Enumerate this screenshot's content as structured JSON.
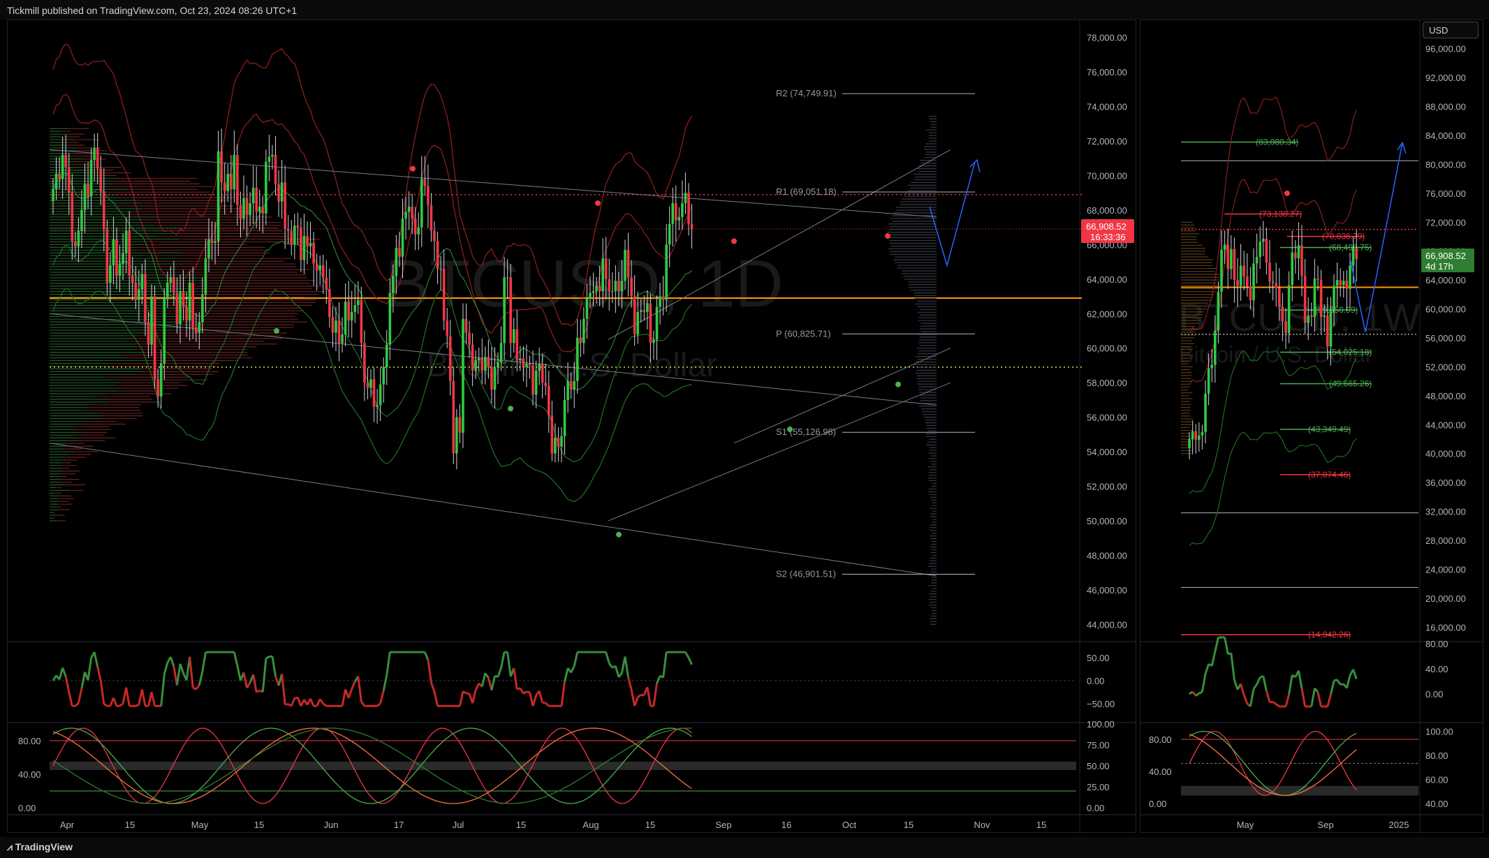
{
  "header": {
    "published": "Tickmill published on TradingView.com, Oct 23, 2024 08:26 UTC+1"
  },
  "footer": {
    "logo_text": "TradingView",
    "logo_icon": "tradingview-logo-icon"
  },
  "symbol_watermark": {
    "left_line1": "BTCUSD, 1D",
    "left_line2": "Bitcoin / U.S. Dollar",
    "right_line1": "BTCUSD, 1W",
    "right_line2": "Bitcoin / U.S. Dollar"
  },
  "left_chart": {
    "price_axis": [
      "78,000.00",
      "76,000.00",
      "74,000.00",
      "72,000.00",
      "70,000.00",
      "68,000.00",
      "66,000.00",
      "64,000.00",
      "62,000.00",
      "60,000.00",
      "58,000.00",
      "56,000.00",
      "54,000.00",
      "52,000.00",
      "50,000.00",
      "48,000.00",
      "46,000.00",
      "44,000.00"
    ],
    "current_price": "66,908.52",
    "countdown": "16:33:36",
    "pivots": [
      {
        "label": "R2 (74,749.91)",
        "value": 74749.91
      },
      {
        "label": "R1 (69,051.18)",
        "value": 69051.18
      },
      {
        "label": "P (60,825.71)",
        "value": 60825.71
      },
      {
        "label": "S1 (55,126.98)",
        "value": 55126.98
      },
      {
        "label": "S2 (46,901.51)",
        "value": 46901.51
      }
    ],
    "time_axis": [
      "Apr",
      "15",
      "May",
      "15",
      "Jun",
      "17",
      "Jul",
      "15",
      "Aug",
      "15",
      "Sep",
      "16",
      "Oct",
      "15",
      "Nov",
      "15"
    ],
    "osc1_axis": [
      "50.00",
      "0.00",
      "−50.00"
    ],
    "osc2_left_axis": [
      "80.00",
      "40.00",
      "0.00"
    ],
    "osc2_right_axis": [
      "100.00",
      "75.00",
      "50.00",
      "25.00",
      "0.00"
    ],
    "chart_data": {
      "type": "candlestick",
      "title": "BTCUSD, 1D",
      "ylim": [
        43000,
        79000
      ],
      "x_range": [
        "2024-03-26",
        "2024-11-30"
      ],
      "close_prices": [
        69200,
        70100,
        69800,
        71200,
        70500,
        69000,
        66200,
        65900,
        66800,
        68000,
        69500,
        68800,
        70900,
        71600,
        70400,
        69100,
        66900,
        63800,
        64800,
        66300,
        64200,
        64900,
        65500,
        66800,
        64200,
        63800,
        62800,
        63400,
        64300,
        61500,
        60200,
        63000,
        58200,
        57200,
        59100,
        62900,
        63800,
        64100,
        63200,
        61400,
        63300,
        62400,
        61600,
        63800,
        61200,
        60900,
        61500,
        63100,
        65200,
        66300,
        66100,
        66200,
        71400,
        69600,
        69100,
        70100,
        69200,
        71200,
        68300,
        67500,
        68700,
        67700,
        68400,
        69300,
        67900,
        68200,
        67800,
        70800,
        71100,
        71200,
        69500,
        68500,
        69600,
        66900,
        66800,
        66000,
        67100,
        67000,
        65100,
        66500,
        65900,
        66100,
        64900,
        64500,
        64800,
        64100,
        63400,
        61800,
        60900,
        61600,
        60300,
        60800,
        62700,
        61600,
        62100,
        62500,
        62800,
        60300,
        58000,
        57700,
        58200,
        56600,
        56700,
        57900,
        58900,
        60200,
        63200,
        64200,
        65800,
        65300,
        67500,
        67900,
        68200,
        67500,
        66600,
        67000,
        69800,
        69400,
        68300,
        66800,
        66200,
        64600,
        64600,
        61600,
        60700,
        58100,
        53900,
        56000,
        55100,
        61700,
        60900,
        60200,
        58700,
        59300,
        59400,
        58700,
        59500,
        58900,
        57600,
        58900,
        59200,
        60300,
        64100,
        64100,
        60300,
        61100,
        59300,
        59400,
        58900,
        59100,
        59000,
        57300,
        58700,
        59100,
        58000,
        57800,
        56100,
        53900,
        54800,
        54300,
        54900,
        57000,
        58100,
        57600,
        58100,
        60600,
        60300,
        61700,
        62900,
        63200,
        63300,
        63600,
        63300,
        65200,
        64000,
        63300,
        63300,
        63900,
        63300,
        63900,
        65700,
        64100,
        63000,
        60800,
        62100,
        62200,
        62100,
        62600,
        60300,
        60500,
        62400,
        63000,
        62800,
        66000,
        67200,
        68400,
        67400,
        67600,
        68400,
        69000,
        67200,
        66908
      ],
      "volume_profile_poc": 62900,
      "dotted_levels": [
        68900,
        58900
      ]
    }
  },
  "right_chart": {
    "currency_button": "USD",
    "price_axis": [
      "96,000.00",
      "92,000.00",
      "88,000.00",
      "84,000.00",
      "80,000.00",
      "76,000.00",
      "72,000.00",
      "68,000.00",
      "64,000.00",
      "60,000.00",
      "56,000.00",
      "52,000.00",
      "48,000.00",
      "44,000.00",
      "40,000.00",
      "36,000.00",
      "32,000.00",
      "28,000.00",
      "24,000.00",
      "20,000.00",
      "16,000.00"
    ],
    "current_price": "66,908.52",
    "countdown": "4d 17h",
    "fib_levels": [
      {
        "label": "(83,080.34)",
        "value": 83080.34,
        "color": "#4caf50"
      },
      {
        "label": "(73,138.27)",
        "value": 73138.27,
        "color": "#f23645"
      },
      {
        "label": "(70,036.79)",
        "value": 70036.79,
        "color": "#f23645"
      },
      {
        "label": "(68,498.75)",
        "value": 68498.75,
        "color": "#4caf50"
      },
      {
        "label": "(59,850.99)",
        "value": 59850.99,
        "color": "#4caf50"
      },
      {
        "label": "(54,025.18)",
        "value": 54025.18,
        "color": "#4caf50"
      },
      {
        "label": "(49,665.26)",
        "value": 49665.26,
        "color": "#4caf50"
      },
      {
        "label": "(43,349.49)",
        "value": 43349.49,
        "color": "#4caf50"
      },
      {
        "label": "(37,074.46)",
        "value": 37074.46,
        "color": "#f23645"
      },
      {
        "label": "(14,942.26)",
        "value": 14942.26,
        "color": "#f23645"
      }
    ],
    "time_axis": [
      "May",
      "Sep",
      "2025"
    ],
    "osc1_axis": [
      "80.00",
      "40.00",
      "0.00"
    ],
    "osc2_left_axis": [
      "80.00",
      "40.00",
      "0.00"
    ],
    "osc2_right_axis": [
      "100.00",
      "80.00",
      "60.00",
      "40.00"
    ],
    "chart_data": {
      "type": "candlestick",
      "title": "BTCUSD, 1W",
      "ylim": [
        14000,
        98000
      ],
      "weekly_closes": [
        42000,
        43100,
        41900,
        42500,
        43000,
        48300,
        51800,
        52300,
        57000,
        62400,
        68200,
        68900,
        65500,
        68300,
        64000,
        63200,
        66000,
        64500,
        63100,
        61200,
        66300,
        67200,
        69300,
        69700,
        66400,
        63800,
        63600,
        62900,
        60300,
        58300,
        56700,
        63300,
        67800,
        67000,
        68800,
        64600,
        58100,
        59100,
        58900,
        64200,
        64000,
        58900,
        59100,
        54800,
        60000,
        63200,
        64000,
        63300,
        63900,
        62800,
        66000,
        68400,
        66908
      ]
    }
  },
  "colors": {
    "up": "#26a69a",
    "up_green": "#4caf50",
    "down": "#f23645",
    "poc": "#ff9800",
    "accent_blue": "#2962ff"
  }
}
